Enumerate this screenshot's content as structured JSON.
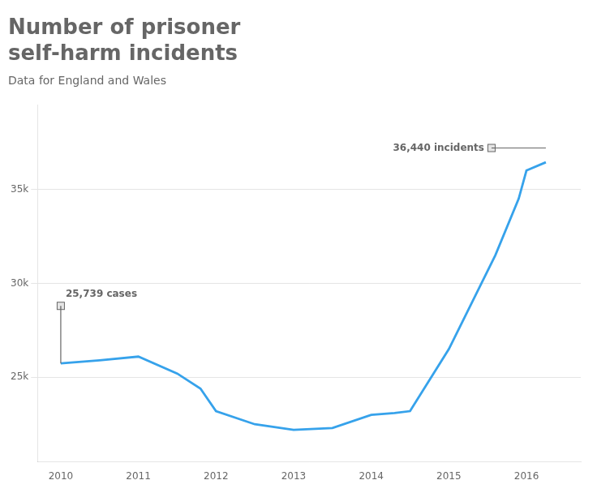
{
  "chart_data": {
    "type": "line",
    "title": [
      "Number of prisoner",
      "self-harm incidents"
    ],
    "subtitle": "Data for England and Wales",
    "x": [
      2010,
      2010.5,
      2011,
      2011.5,
      2011.8,
      2012,
      2012.5,
      2013,
      2013.5,
      2014,
      2014.3,
      2014.5,
      2015,
      2015.3,
      2015.6,
      2015.9,
      2016,
      2016.25
    ],
    "values": [
      25739,
      25900,
      26100,
      25200,
      24400,
      23200,
      22500,
      22200,
      22300,
      23000,
      23100,
      23200,
      26500,
      29000,
      31500,
      34500,
      36000,
      36440
    ],
    "xlim": [
      2009.7,
      2016.7
    ],
    "xticks": [
      2010,
      2011,
      2012,
      2013,
      2014,
      2015,
      2016
    ],
    "ylim": [
      20500,
      39500
    ],
    "yticks": [
      {
        "value": 25000,
        "label": "25k"
      },
      {
        "value": 30000,
        "label": "30k"
      },
      {
        "value": 35000,
        "label": "35k"
      }
    ],
    "grid": true,
    "annotations": [
      {
        "text": "25,739 cases",
        "x": 2010,
        "y": 28800,
        "point": [
          2010,
          25739
        ]
      },
      {
        "text": "36,440 incidents",
        "x": 2015.55,
        "y": 37200,
        "point": [
          2016.25,
          37200
        ]
      }
    ]
  }
}
